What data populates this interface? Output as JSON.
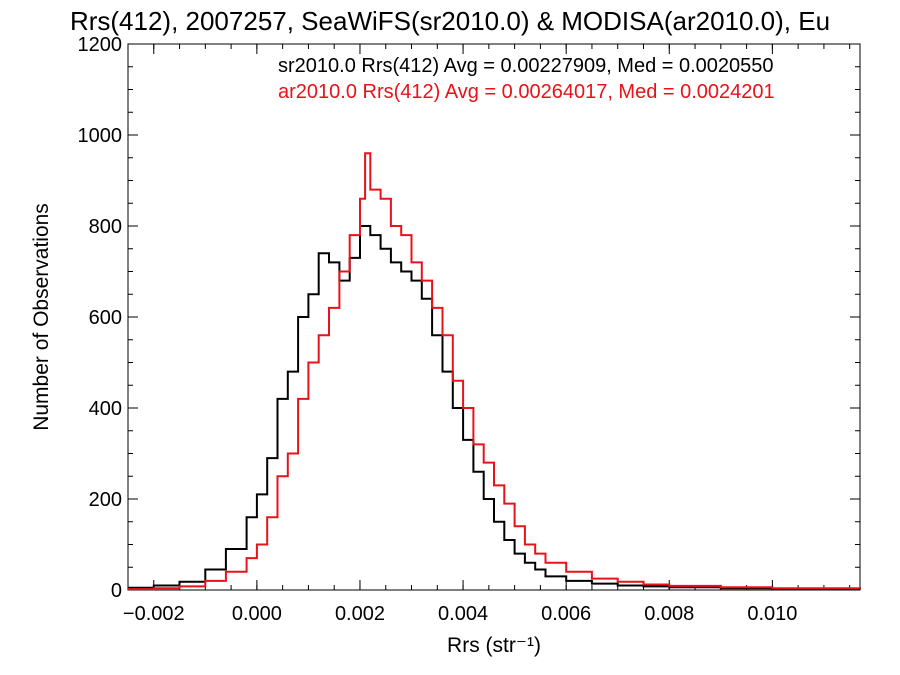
{
  "chart_data": {
    "type": "line",
    "title": "Rrs(412), 2007257, SeaWiFS(sr2010.0) & MODISA(ar2010.0), Eu",
    "xlabel": "Rrs (str⁻¹)",
    "ylabel": "Number of Observations",
    "xlim": [
      -0.0025,
      0.0117
    ],
    "ylim": [
      0,
      1200
    ],
    "xticks": [
      -0.002,
      0.0,
      0.002,
      0.004,
      0.006,
      0.008,
      0.01
    ],
    "xtick_labels": [
      "−0.002",
      "0.000",
      "0.002",
      "0.004",
      "0.006",
      "0.008",
      "0.010"
    ],
    "yticks": [
      0,
      200,
      400,
      600,
      800,
      1000,
      1200
    ],
    "ytick_labels": [
      "0",
      "200",
      "400",
      "600",
      "800",
      "1000",
      "1200"
    ],
    "grid": false,
    "legend_position": "top-right",
    "annotations": [
      {
        "text": "sr2010.0 Rrs(412) Avg = 0.00227909, Med = 0.0020550",
        "color": "#000000"
      },
      {
        "text": "ar2010.0 Rrs(412) Avg = 0.00264017, Med = 0.0024201",
        "color": "#e8121a"
      }
    ],
    "series": [
      {
        "color": "#000000",
        "step": true,
        "x": [
          -0.0025,
          -0.002,
          -0.0015,
          -0.001,
          -0.0006,
          -0.0002,
          0.0,
          0.0002,
          0.0004,
          0.0006,
          0.0008,
          0.001,
          0.0012,
          0.0014,
          0.0016,
          0.0018,
          0.002,
          0.0022,
          0.0024,
          0.0026,
          0.0028,
          0.003,
          0.0032,
          0.0034,
          0.0036,
          0.0038,
          0.004,
          0.0042,
          0.0044,
          0.0046,
          0.0048,
          0.005,
          0.0052,
          0.0054,
          0.0056,
          0.006,
          0.0065,
          0.007,
          0.0075,
          0.008,
          0.009,
          0.01,
          0.0117
        ],
        "y": [
          5,
          10,
          18,
          45,
          90,
          160,
          210,
          290,
          420,
          480,
          600,
          650,
          740,
          720,
          680,
          730,
          800,
          780,
          750,
          720,
          700,
          680,
          640,
          560,
          480,
          400,
          330,
          260,
          200,
          150,
          110,
          80,
          60,
          45,
          30,
          20,
          14,
          10,
          8,
          6,
          4,
          3,
          2
        ]
      },
      {
        "color": "#e8121a",
        "step": true,
        "x": [
          -0.0025,
          -0.002,
          -0.0015,
          -0.001,
          -0.0006,
          -0.0002,
          0.0,
          0.0002,
          0.0004,
          0.0006,
          0.0008,
          0.001,
          0.0012,
          0.0014,
          0.0016,
          0.0018,
          0.002,
          0.0021,
          0.0022,
          0.0024,
          0.0026,
          0.0028,
          0.003,
          0.0032,
          0.0034,
          0.0036,
          0.0038,
          0.004,
          0.0042,
          0.0044,
          0.0046,
          0.0048,
          0.005,
          0.0052,
          0.0054,
          0.0056,
          0.006,
          0.0065,
          0.007,
          0.0075,
          0.008,
          0.009,
          0.01,
          0.0117
        ],
        "y": [
          2,
          4,
          8,
          20,
          40,
          70,
          100,
          160,
          250,
          300,
          420,
          500,
          560,
          620,
          700,
          780,
          860,
          960,
          880,
          860,
          800,
          780,
          720,
          680,
          620,
          560,
          460,
          400,
          320,
          280,
          230,
          190,
          140,
          100,
          80,
          60,
          40,
          25,
          18,
          12,
          9,
          6,
          4,
          3
        ]
      }
    ]
  }
}
